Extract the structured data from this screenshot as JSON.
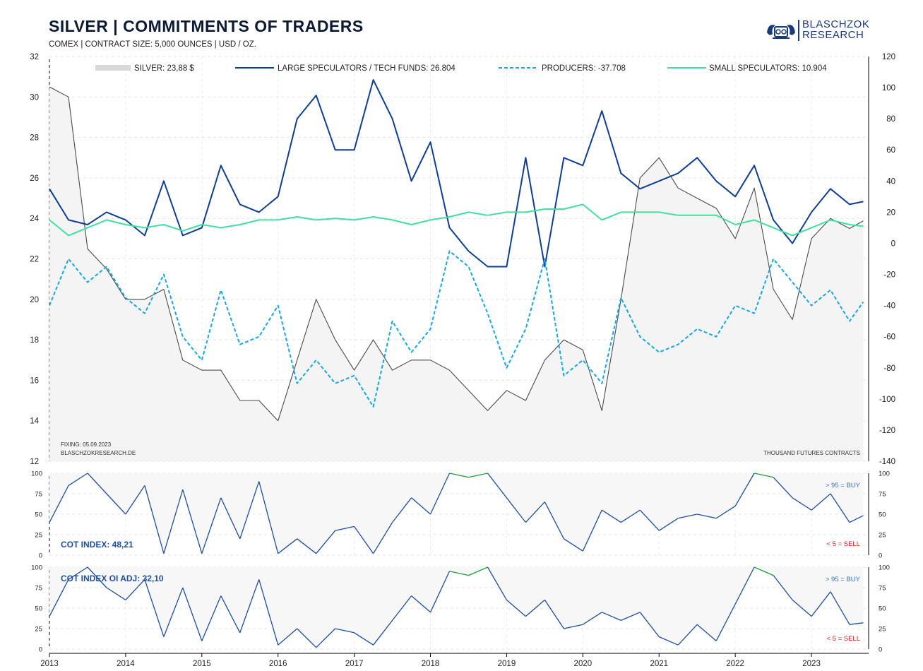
{
  "header": {
    "title": "SILVER | COMMITMENTS OF TRADERS",
    "subtitle": "COMEX | CONTRACT SIZE: 5,000 OUNCES | USD / OZ.",
    "logo_line1": "BLASCHZOK",
    "logo_line2": "RESEARCH"
  },
  "notes": {
    "fixing": "FIXING: 05.09.2023",
    "source": "BLASCHZOKRESEARCH.DE",
    "units": "THOUSAND  FUTURES  CONTRACTS"
  },
  "colors": {
    "price": "#4a4a4a",
    "large_specs": "#0f3d91",
    "producers": "#1aa6de",
    "small_specs": "#3fe0a0",
    "buy": "#1e9e3a",
    "sell": "#e02020"
  },
  "chart_data": [
    {
      "type": "line",
      "title": "SILVER | COMMITMENTS OF TRADERS",
      "x_ticks": [
        "2013",
        "2014",
        "2015",
        "2016",
        "2017",
        "2018",
        "2019",
        "2020",
        "2021",
        "2022",
        "2023"
      ],
      "y_left_ticks": [
        "32",
        "30",
        "28",
        "26",
        "24",
        "22",
        "20",
        "18",
        "16",
        "14",
        "12"
      ],
      "y_right_ticks": [
        "120",
        "100",
        "80",
        "60",
        "40",
        "20",
        "0",
        "-20",
        "-40",
        "-60",
        "-80",
        "-100",
        "-120",
        "-140"
      ],
      "ylim_left": [
        12,
        32
      ],
      "ylim_right": [
        -140,
        120
      ],
      "x": [
        2013.0,
        2013.25,
        2013.5,
        2013.75,
        2014.0,
        2014.25,
        2014.5,
        2014.75,
        2015.0,
        2015.25,
        2015.5,
        2015.75,
        2016.0,
        2016.25,
        2016.5,
        2016.75,
        2017.0,
        2017.25,
        2017.5,
        2017.75,
        2018.0,
        2018.25,
        2018.5,
        2018.75,
        2019.0,
        2019.25,
        2019.5,
        2019.75,
        2020.0,
        2020.25,
        2020.5,
        2020.75,
        2021.0,
        2021.25,
        2021.5,
        2021.75,
        2022.0,
        2022.25,
        2022.5,
        2022.75,
        2023.0,
        2023.25,
        2023.5,
        2023.68
      ],
      "series": [
        {
          "name": "SILVER: 23,88 $",
          "axis": "left",
          "values": [
            30.5,
            30.0,
            22.5,
            21.5,
            20.0,
            20.0,
            20.5,
            17.0,
            16.5,
            16.5,
            15.0,
            15.0,
            14.0,
            17.0,
            20.0,
            18.0,
            16.5,
            18.0,
            16.5,
            17.0,
            17.0,
            16.5,
            15.5,
            14.5,
            15.5,
            15.0,
            17.0,
            18.0,
            17.5,
            14.5,
            20.0,
            26.0,
            27.0,
            25.5,
            25.0,
            24.5,
            23.0,
            25.5,
            20.5,
            19.0,
            23.0,
            24.0,
            23.5,
            23.88
          ]
        },
        {
          "name": "LARGE SPECULATORS / TECH FUNDS: 26.804",
          "axis": "right",
          "values": [
            35,
            15,
            12,
            20,
            15,
            5,
            40,
            5,
            10,
            50,
            25,
            20,
            30,
            80,
            95,
            60,
            60,
            105,
            80,
            40,
            65,
            10,
            -5,
            -15,
            -15,
            55,
            -15,
            55,
            50,
            85,
            45,
            35,
            40,
            45,
            55,
            40,
            30,
            50,
            15,
            0,
            20,
            35,
            25,
            26.804
          ]
        },
        {
          "name": "PRODUCERS: -37.708",
          "axis": "right",
          "values": [
            -40,
            -10,
            -25,
            -15,
            -35,
            -45,
            -20,
            -60,
            -75,
            -30,
            -65,
            -60,
            -40,
            -90,
            -75,
            -90,
            -85,
            -105,
            -50,
            -70,
            -55,
            -5,
            -15,
            -45,
            -80,
            -55,
            -10,
            -85,
            -75,
            -90,
            -35,
            -60,
            -70,
            -65,
            -55,
            -60,
            -40,
            -45,
            -10,
            -25,
            -40,
            -30,
            -50,
            -37.708
          ]
        },
        {
          "name": "SMALL SPECULATORS: 10.904",
          "axis": "right",
          "values": [
            15,
            5,
            10,
            15,
            12,
            10,
            12,
            8,
            12,
            10,
            12,
            15,
            15,
            17,
            15,
            16,
            15,
            17,
            15,
            12,
            15,
            17,
            20,
            18,
            20,
            20,
            22,
            22,
            25,
            15,
            20,
            20,
            20,
            18,
            18,
            18,
            12,
            15,
            10,
            5,
            10,
            15,
            12,
            10.904
          ]
        }
      ]
    },
    {
      "type": "line",
      "title": "COT INDEX: 48,21",
      "y_ticks": [
        "100",
        "75",
        "50",
        "25",
        "0"
      ],
      "ylim": [
        0,
        100
      ],
      "thresholds": {
        "buy": "> 95 = BUY",
        "sell": "< 5 = SELL"
      },
      "x": [
        2013.0,
        2013.25,
        2013.5,
        2013.75,
        2014.0,
        2014.25,
        2014.5,
        2014.75,
        2015.0,
        2015.25,
        2015.5,
        2015.75,
        2016.0,
        2016.25,
        2016.5,
        2016.75,
        2017.0,
        2017.25,
        2017.5,
        2017.75,
        2018.0,
        2018.25,
        2018.5,
        2018.75,
        2019.0,
        2019.25,
        2019.5,
        2019.75,
        2020.0,
        2020.25,
        2020.5,
        2020.75,
        2021.0,
        2021.25,
        2021.5,
        2021.75,
        2022.0,
        2022.25,
        2022.5,
        2022.75,
        2023.0,
        2023.25,
        2023.5,
        2023.68
      ],
      "values": [
        40,
        85,
        100,
        75,
        50,
        85,
        2,
        80,
        2,
        70,
        20,
        90,
        2,
        20,
        2,
        30,
        35,
        2,
        40,
        70,
        50,
        100,
        95,
        100,
        70,
        40,
        65,
        20,
        5,
        55,
        40,
        55,
        30,
        45,
        50,
        45,
        60,
        100,
        95,
        70,
        55,
        75,
        40,
        48.21
      ]
    },
    {
      "type": "line",
      "title": "COT INDEX OI ADJ: 32,10",
      "y_ticks": [
        "100",
        "75",
        "50",
        "25",
        "0"
      ],
      "ylim": [
        0,
        100
      ],
      "thresholds": {
        "buy": "> 95 = BUY",
        "sell": "< 5 = SELL"
      },
      "x": [
        2013.0,
        2013.25,
        2013.5,
        2013.75,
        2014.0,
        2014.25,
        2014.5,
        2014.75,
        2015.0,
        2015.25,
        2015.5,
        2015.75,
        2016.0,
        2016.25,
        2016.5,
        2016.75,
        2017.0,
        2017.25,
        2017.5,
        2017.75,
        2018.0,
        2018.25,
        2018.5,
        2018.75,
        2019.0,
        2019.25,
        2019.5,
        2019.75,
        2020.0,
        2020.25,
        2020.5,
        2020.75,
        2021.0,
        2021.25,
        2021.5,
        2021.75,
        2022.0,
        2022.25,
        2022.5,
        2022.75,
        2023.0,
        2023.25,
        2023.5,
        2023.68
      ],
      "values": [
        40,
        85,
        100,
        75,
        60,
        85,
        15,
        75,
        10,
        65,
        20,
        85,
        5,
        25,
        2,
        25,
        20,
        5,
        35,
        65,
        45,
        95,
        90,
        100,
        60,
        40,
        60,
        25,
        30,
        45,
        35,
        45,
        15,
        5,
        30,
        10,
        55,
        100,
        90,
        60,
        40,
        70,
        30,
        32.1
      ]
    }
  ],
  "legend": {
    "silver": "SILVER: 23,88 $",
    "large": "LARGE SPECULATORS / TECH FUNDS: 26.804",
    "producers": "PRODUCERS: -37.708",
    "small": "SMALL SPECULATORS: 10.904"
  },
  "labels": {
    "cot_index": "COT INDEX: 48,21",
    "cot_index_oi": "COT INDEX OI ADJ: 32,10",
    "buy": "> 95 = BUY",
    "sell": "< 5 = SELL"
  }
}
